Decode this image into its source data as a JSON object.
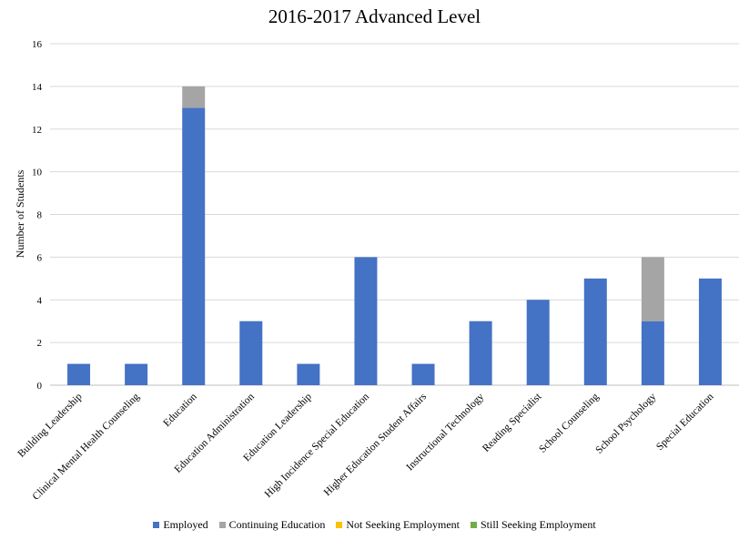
{
  "chart_data": {
    "type": "bar",
    "stacked": true,
    "title": "2016-2017 Advanced Level",
    "xlabel": "",
    "ylabel": "Number of Students",
    "ylim": [
      0,
      16
    ],
    "yticks": [
      0,
      2,
      4,
      6,
      8,
      10,
      12,
      14,
      16
    ],
    "grid": true,
    "legend_position": "bottom",
    "categories": [
      "Building Leadership",
      "Clinical Mental Health Counseling",
      "Education",
      "Education Administration",
      "Education Leadership",
      "High Incidence Special Education",
      "Higher Education Student Affairs",
      "Instructional Technology",
      "Reading Specialist",
      "School Counseling",
      "School Psychology",
      "Special Education"
    ],
    "series": [
      {
        "name": "Employed",
        "color": "#4472C4",
        "values": [
          1,
          1,
          13,
          3,
          1,
          6,
          1,
          3,
          4,
          5,
          3,
          5
        ]
      },
      {
        "name": "Continuing Education",
        "color": "#A5A5A5",
        "values": [
          0,
          0,
          1,
          0,
          0,
          0,
          0,
          0,
          0,
          0,
          3,
          0
        ]
      },
      {
        "name": "Not Seeking Employment",
        "color": "#FFC000",
        "values": [
          0,
          0,
          0,
          0,
          0,
          0,
          0,
          0,
          0,
          0,
          0,
          0
        ]
      },
      {
        "name": "Still Seeking Employment",
        "color": "#70AD47",
        "values": [
          0,
          0,
          0,
          0,
          0,
          0,
          0,
          0,
          0,
          0,
          0,
          0
        ]
      }
    ]
  }
}
